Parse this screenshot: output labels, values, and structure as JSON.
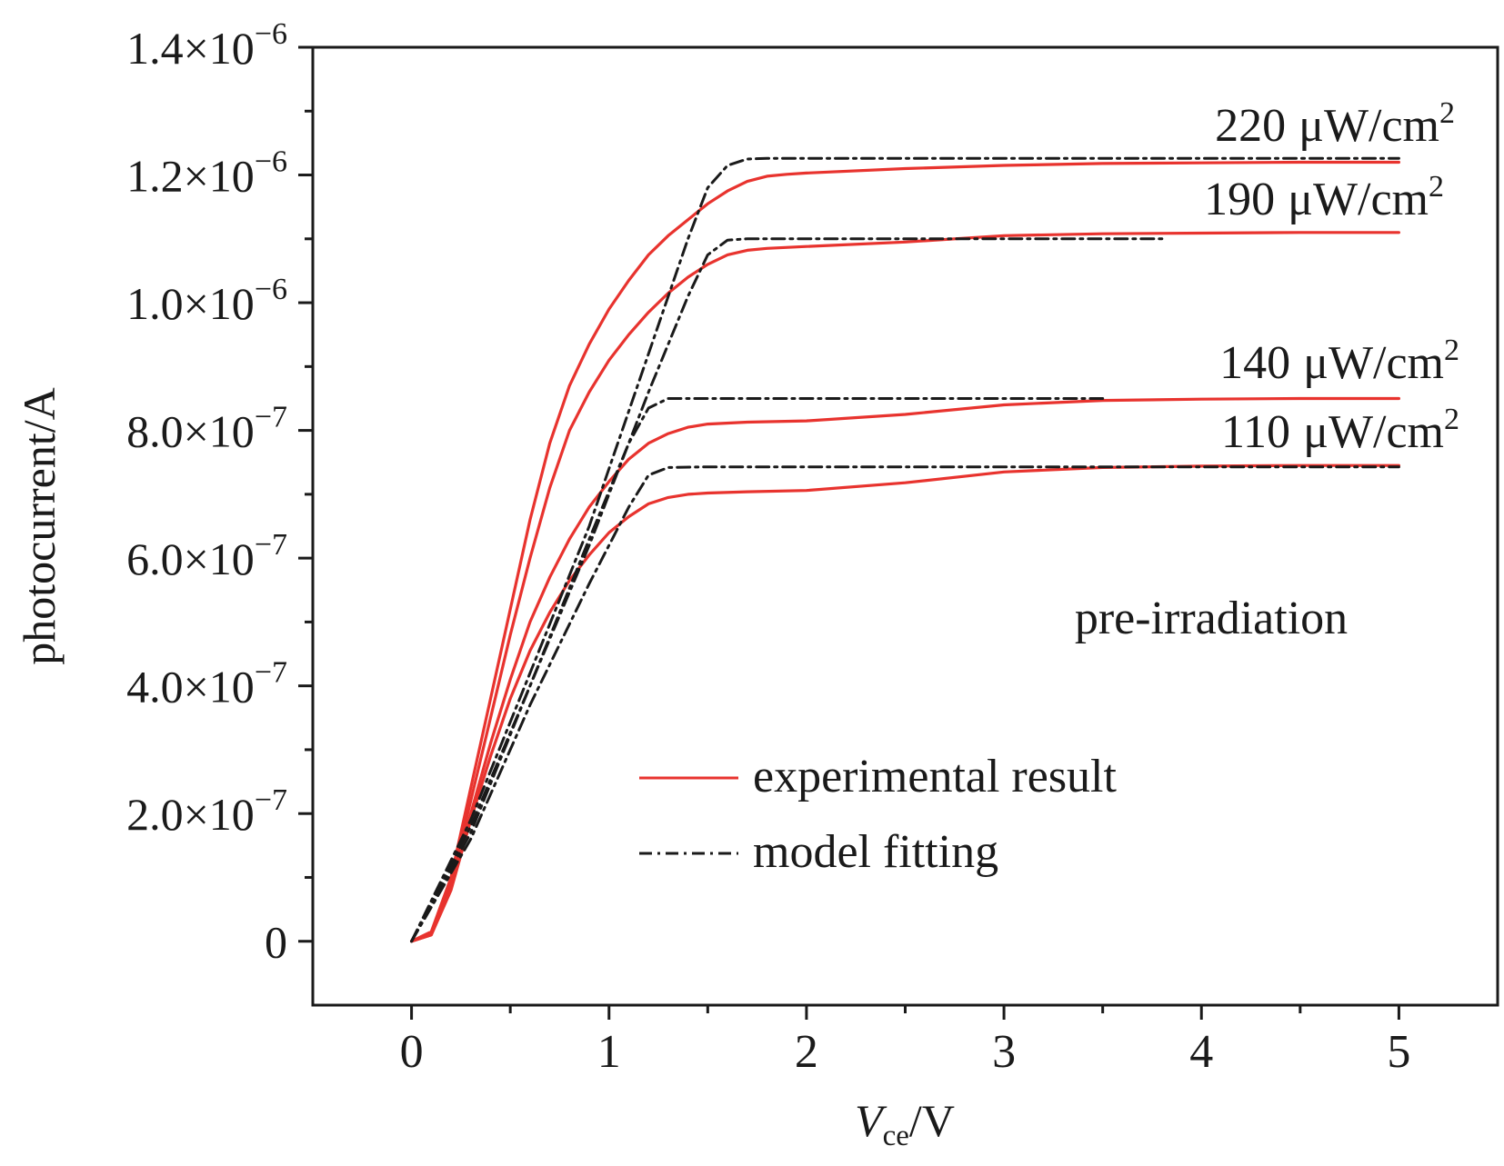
{
  "chart_data": {
    "type": "line",
    "xlabel": {
      "main": "V",
      "sub": "ce",
      "rest": "/V"
    },
    "ylabel": "photocurrent/A",
    "xlim": [
      -0.5,
      5.5
    ],
    "ylim": [
      -1e-07,
      1.4e-06
    ],
    "x_ticks": [
      {
        "value": 0,
        "label": "0"
      },
      {
        "value": 1,
        "label": "1"
      },
      {
        "value": 2,
        "label": "2"
      },
      {
        "value": 3,
        "label": "3"
      },
      {
        "value": 4,
        "label": "4"
      },
      {
        "value": 5,
        "label": "5"
      }
    ],
    "y_ticks": [
      {
        "value": 0,
        "mantissa": "0",
        "times": "",
        "exponent": ""
      },
      {
        "value": 2e-07,
        "mantissa": "2.0",
        "times": "×10",
        "exponent": "−7"
      },
      {
        "value": 4e-07,
        "mantissa": "4.0",
        "times": "×10",
        "exponent": "−7"
      },
      {
        "value": 6e-07,
        "mantissa": "6.0",
        "times": "×10",
        "exponent": "−7"
      },
      {
        "value": 8e-07,
        "mantissa": "8.0",
        "times": "×10",
        "exponent": "−7"
      },
      {
        "value": 1e-06,
        "mantissa": "1.0",
        "times": "×10",
        "exponent": "−6"
      },
      {
        "value": 1.2e-06,
        "mantissa": "1.2",
        "times": "×10",
        "exponent": "−6"
      },
      {
        "value": 1.4e-06,
        "mantissa": "1.4",
        "times": "×10",
        "exponent": "−6"
      }
    ],
    "x_minor_ticks": [
      0.5,
      1.5,
      2.5,
      3.5,
      4.5
    ],
    "y_minor_ticks": [
      1e-07,
      3e-07,
      5e-07,
      7e-07,
      9e-07,
      1.1e-06,
      1.3e-06
    ],
    "series": [
      {
        "group": "experimental",
        "level": "220",
        "color": "#e8332e",
        "dash": "solid",
        "x": [
          0,
          0.1,
          0.2,
          0.3,
          0.4,
          0.5,
          0.6,
          0.7,
          0.8,
          0.9,
          1.0,
          1.1,
          1.2,
          1.3,
          1.4,
          1.5,
          1.6,
          1.7,
          1.8,
          1.9,
          2.0,
          2.5,
          3.0,
          3.5,
          4.0,
          4.5,
          5.0
        ],
        "y": [
          0,
          1.5e-08,
          1e-07,
          2.4e-07,
          3.8e-07,
          5.2e-07,
          6.6e-07,
          7.8e-07,
          8.7e-07,
          9.35e-07,
          9.9e-07,
          1.035e-06,
          1.075e-06,
          1.105e-06,
          1.13e-06,
          1.155e-06,
          1.175e-06,
          1.19e-06,
          1.198e-06,
          1.201e-06,
          1.203e-06,
          1.21e-06,
          1.215e-06,
          1.218e-06,
          1.219e-06,
          1.22e-06,
          1.22e-06
        ]
      },
      {
        "group": "experimental",
        "level": "190",
        "color": "#e8332e",
        "dash": "solid",
        "x": [
          0,
          0.1,
          0.2,
          0.3,
          0.4,
          0.5,
          0.6,
          0.7,
          0.8,
          0.9,
          1.0,
          1.1,
          1.2,
          1.3,
          1.4,
          1.5,
          1.6,
          1.7,
          1.8,
          2.0,
          2.5,
          3.0,
          3.5,
          4.0,
          4.5,
          5.0
        ],
        "y": [
          0,
          1.2e-08,
          9e-08,
          2.2e-07,
          3.5e-07,
          4.8e-07,
          6e-07,
          7.1e-07,
          8e-07,
          8.6e-07,
          9.1e-07,
          9.5e-07,
          9.85e-07,
          1.015e-06,
          1.04e-06,
          1.06e-06,
          1.075e-06,
          1.082e-06,
          1.085e-06,
          1.088e-06,
          1.095e-06,
          1.105e-06,
          1.108e-06,
          1.109e-06,
          1.11e-06,
          1.11e-06
        ]
      },
      {
        "group": "experimental",
        "level": "140",
        "color": "#e8332e",
        "dash": "solid",
        "x": [
          0,
          0.1,
          0.2,
          0.3,
          0.4,
          0.5,
          0.6,
          0.7,
          0.8,
          0.9,
          1.0,
          1.1,
          1.2,
          1.3,
          1.4,
          1.5,
          1.7,
          2.0,
          2.5,
          3.0,
          3.5,
          4.0,
          4.5,
          5.0
        ],
        "y": [
          0,
          1e-08,
          8.5e-08,
          2e-07,
          3.1e-07,
          4.1e-07,
          5e-07,
          5.7e-07,
          6.3e-07,
          6.8e-07,
          7.2e-07,
          7.55e-07,
          7.8e-07,
          7.95e-07,
          8.05e-07,
          8.1e-07,
          8.13e-07,
          8.15e-07,
          8.25e-07,
          8.4e-07,
          8.47e-07,
          8.49e-07,
          8.5e-07,
          8.5e-07
        ]
      },
      {
        "group": "experimental",
        "level": "110",
        "color": "#e8332e",
        "dash": "solid",
        "x": [
          0,
          0.1,
          0.2,
          0.3,
          0.4,
          0.5,
          0.6,
          0.7,
          0.8,
          0.9,
          1.0,
          1.1,
          1.2,
          1.3,
          1.4,
          1.5,
          1.7,
          2.0,
          2.5,
          3.0,
          3.5,
          4.0,
          4.5,
          5.0
        ],
        "y": [
          0,
          1e-08,
          8e-08,
          1.9e-07,
          2.9e-07,
          3.8e-07,
          4.55e-07,
          5.15e-07,
          5.65e-07,
          6.05e-07,
          6.4e-07,
          6.65e-07,
          6.85e-07,
          6.95e-07,
          7e-07,
          7.02e-07,
          7.04e-07,
          7.06e-07,
          7.18e-07,
          7.35e-07,
          7.42e-07,
          7.44e-07,
          7.45e-07,
          7.45e-07
        ]
      },
      {
        "group": "model",
        "level": "220",
        "color": "#1a1a1a",
        "dash": "dashdot",
        "x": [
          0,
          0.3,
          0.6,
          0.9,
          1.2,
          1.4,
          1.5,
          1.6,
          1.7,
          1.8,
          2.0,
          3.0,
          4.0,
          5.0
        ],
        "y": [
          0,
          1.9e-07,
          4.2e-07,
          6.5e-07,
          9.2e-07,
          1.1e-06,
          1.18e-06,
          1.215e-06,
          1.225e-06,
          1.226e-06,
          1.226e-06,
          1.226e-06,
          1.226e-06,
          1.226e-06
        ]
      },
      {
        "group": "model",
        "level": "190",
        "color": "#1a1a1a",
        "dash": "dashdot",
        "x": [
          0,
          0.3,
          0.6,
          0.9,
          1.2,
          1.4,
          1.5,
          1.6,
          1.7,
          2.0,
          3.0,
          3.8
        ],
        "y": [
          0,
          1.8e-07,
          4e-07,
          6.2e-07,
          8.6e-07,
          1.01e-06,
          1.075e-06,
          1.098e-06,
          1.1e-06,
          1.1e-06,
          1.1e-06,
          1.1e-06
        ]
      },
      {
        "group": "model",
        "level": "140",
        "color": "#1a1a1a",
        "dash": "dashdot",
        "x": [
          0,
          0.3,
          0.6,
          0.9,
          1.1,
          1.2,
          1.3,
          1.5,
          2.0,
          3.0,
          3.5
        ],
        "y": [
          0,
          1.7e-07,
          4e-07,
          6.3e-07,
          7.8e-07,
          8.35e-07,
          8.5e-07,
          8.5e-07,
          8.5e-07,
          8.5e-07,
          8.5e-07
        ]
      },
      {
        "group": "model",
        "level": "110",
        "color": "#1a1a1a",
        "dash": "dashdot",
        "x": [
          0,
          0.3,
          0.6,
          0.9,
          1.1,
          1.2,
          1.3,
          1.5,
          2.0,
          3.0,
          4.0,
          5.0
        ],
        "y": [
          0,
          1.6e-07,
          3.7e-07,
          5.6e-07,
          6.8e-07,
          7.3e-07,
          7.42e-07,
          7.43e-07,
          7.43e-07,
          7.43e-07,
          7.43e-07,
          7.43e-07
        ]
      }
    ],
    "annotations": [
      {
        "id": "220",
        "value": "220",
        "unit": "μW/cm",
        "sup": "2"
      },
      {
        "id": "190",
        "value": "190",
        "unit": "μW/cm",
        "sup": "2"
      },
      {
        "id": "140",
        "value": "140",
        "unit": "μW/cm",
        "sup": "2"
      },
      {
        "id": "110",
        "value": "110",
        "unit": "μW/cm",
        "sup": "2"
      }
    ],
    "condition_label": "pre-irradiation",
    "legend": {
      "placement": "bottom-center",
      "entries": [
        {
          "label": "experimental result",
          "color": "#e8332e",
          "dash": "solid"
        },
        {
          "label": "model fitting",
          "color": "#1a1a1a",
          "dash": "dashdot"
        }
      ]
    }
  }
}
